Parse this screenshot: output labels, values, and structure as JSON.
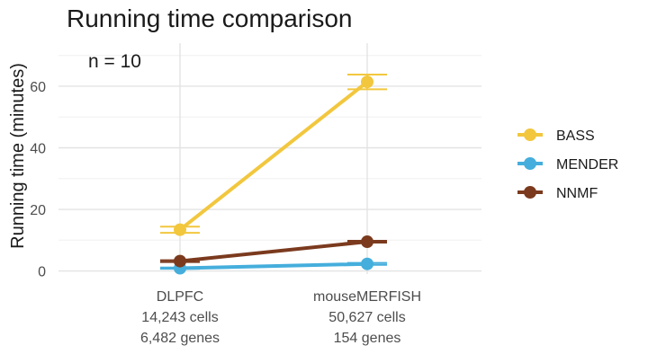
{
  "chart_data": {
    "type": "line",
    "title": "Running time comparison",
    "ylabel": "Running time (minutes)",
    "xlabel": "",
    "annotation": "n = 10",
    "categories": [
      [
        "DLPFC",
        "14,243 cells",
        "6,482 genes"
      ],
      [
        "mouseMERFISH",
        "50,627 cells",
        "154 genes"
      ]
    ],
    "yticks": [
      0,
      20,
      40,
      60
    ],
    "ylim": [
      -1,
      74
    ],
    "grid": true,
    "legend_position": "right",
    "series": [
      {
        "name": "BASS",
        "color": "#F2C73E",
        "values": [
          13.4,
          61.4
        ],
        "err_low": [
          12.4,
          59.0
        ],
        "err_high": [
          14.4,
          63.8
        ]
      },
      {
        "name": "MENDER",
        "color": "#45AEDC",
        "values": [
          0.9,
          2.3
        ],
        "err_low": [
          0.7,
          2.0
        ],
        "err_high": [
          1.1,
          2.6
        ]
      },
      {
        "name": "NNMF",
        "color": "#7B3A1E",
        "values": [
          3.2,
          9.5
        ],
        "err_low": [
          2.9,
          9.2
        ],
        "err_high": [
          3.5,
          9.8
        ]
      }
    ]
  }
}
